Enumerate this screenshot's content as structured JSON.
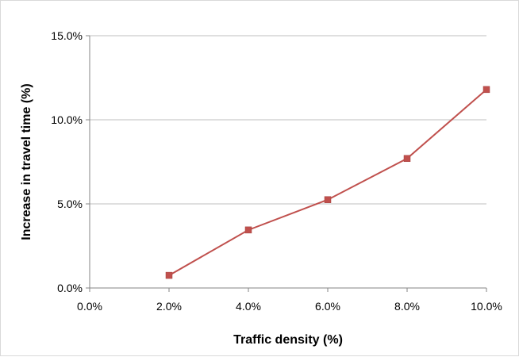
{
  "chart_data": {
    "type": "line",
    "title": "",
    "xlabel": "Traffic density (%)",
    "ylabel": "Increase in travel time (%)",
    "x": [
      2.0,
      4.0,
      6.0,
      8.0,
      10.0
    ],
    "series": [
      {
        "values": [
          0.75,
          3.45,
          5.25,
          7.7,
          11.8
        ],
        "color": "#c0504d",
        "marker": "square"
      }
    ],
    "xlim": [
      0,
      10
    ],
    "ylim": [
      0,
      15
    ],
    "x_ticks": [
      0,
      2,
      4,
      6,
      8,
      10
    ],
    "y_ticks": [
      0,
      5,
      10,
      15
    ],
    "x_tick_labels": [
      "0.0%",
      "2.0%",
      "4.0%",
      "6.0%",
      "8.0%",
      "10.0%"
    ],
    "y_tick_labels": [
      "0.0%",
      "5.0%",
      "10.0%",
      "15.0%"
    ],
    "grid": "horizontal",
    "legend": "none"
  }
}
